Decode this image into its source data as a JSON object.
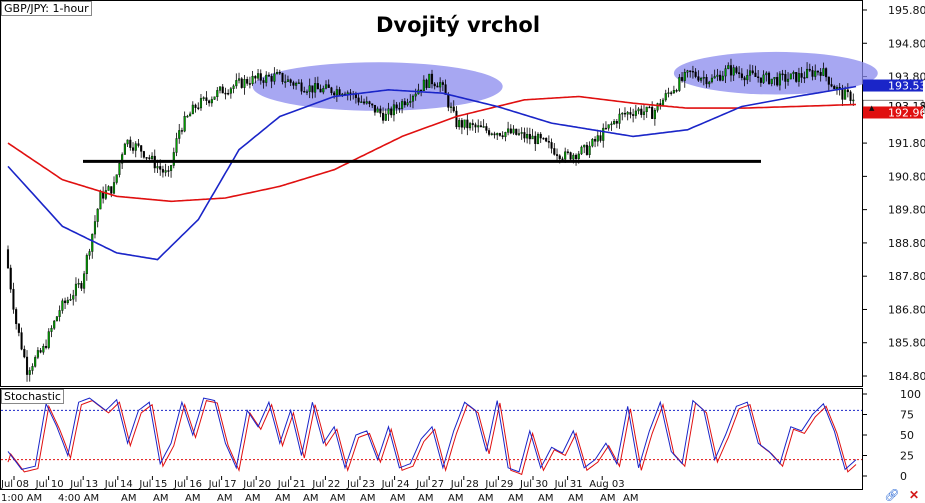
{
  "symbol_label": "GBP/JPY: 1-hour",
  "indicator_label": "Stochastic",
  "annotation_title": "Dvojitý vrchol",
  "colors": {
    "up": "#00a000",
    "down": "#000000",
    "ma_fast": "#1a25c8",
    "ma_slow": "#e01010",
    "ellipse": "#8a8aee",
    "stoch_k": "#1a25c8",
    "stoch_d": "#e01010",
    "level_high": "#1a25c8",
    "level_low": "#e01010",
    "price_badge_blue": "#1a25c8",
    "price_badge_red": "#e01010"
  },
  "chart_data": {
    "type": "candlestick",
    "title": "Dvojitý vrchol",
    "price_axis": {
      "ylim": [
        184.5,
        196.1
      ],
      "ticks": [
        "195.80",
        "194.80",
        "193.80",
        "192.80",
        "191.80",
        "190.80",
        "189.80",
        "188.80",
        "187.80",
        "186.80",
        "185.80",
        "184.80"
      ],
      "last_prices": [
        {
          "label": "193.53",
          "color": "blue"
        },
        {
          "label": "193.18",
          "color": "black"
        },
        {
          "label": "192.96",
          "color": "red"
        }
      ]
    },
    "x_axis": {
      "date_labels": [
        "Jul 08",
        "Jul 10",
        "Jul 13",
        "Jul 14",
        "Jul 15",
        "Jul 16",
        "Jul 17",
        "Jul 20",
        "Jul 21",
        "Jul 22",
        "Jul 23",
        "Jul 24",
        "Jul 27",
        "Jul 28",
        "Jul 29",
        "Jul 30",
        "Jul 31",
        "Aug 03"
      ],
      "time_labels": [
        "1:00 AM",
        "4:00 AM",
        "AM",
        "AM",
        "AM",
        "AM",
        "AM",
        "AM",
        "AM",
        "AM",
        "AM",
        "AM",
        "AM",
        "AM",
        "AM",
        "AM",
        "AM",
        "AM",
        "AM",
        "AM"
      ]
    },
    "price_path": [
      [
        0,
        188.6
      ],
      [
        4,
        186.4
      ],
      [
        8,
        185.0
      ],
      [
        14,
        185.6
      ],
      [
        20,
        186.8
      ],
      [
        28,
        187.6
      ],
      [
        35,
        190.2
      ],
      [
        40,
        190.5
      ],
      [
        44,
        191.9
      ],
      [
        50,
        191.6
      ],
      [
        56,
        191.1
      ],
      [
        60,
        190.8
      ],
      [
        64,
        192.2
      ],
      [
        70,
        192.9
      ],
      [
        80,
        193.4
      ],
      [
        90,
        193.7
      ],
      [
        100,
        193.8
      ],
      [
        106,
        193.6
      ],
      [
        115,
        193.4
      ],
      [
        125,
        193.4
      ],
      [
        132,
        193.0
      ],
      [
        140,
        192.6
      ],
      [
        150,
        193.3
      ],
      [
        156,
        193.7
      ],
      [
        160,
        193.6
      ],
      [
        166,
        192.4
      ],
      [
        176,
        192.2
      ],
      [
        186,
        192.1
      ],
      [
        196,
        191.9
      ],
      [
        206,
        191.4
      ],
      [
        214,
        191.6
      ],
      [
        220,
        192.1
      ],
      [
        226,
        192.6
      ],
      [
        232,
        192.8
      ],
      [
        238,
        192.7
      ],
      [
        245,
        193.4
      ],
      [
        252,
        193.9
      ],
      [
        260,
        193.7
      ],
      [
        266,
        194.0
      ],
      [
        275,
        193.8
      ],
      [
        284,
        193.7
      ],
      [
        292,
        193.8
      ],
      [
        300,
        194.0
      ],
      [
        305,
        193.5
      ],
      [
        308,
        193.25
      ],
      [
        312,
        193.18
      ]
    ],
    "candles_count": 312,
    "support_level": 191.25,
    "ma_fast": {
      "name": "",
      "points": [
        [
          0,
          191.1
        ],
        [
          20,
          189.3
        ],
        [
          40,
          188.5
        ],
        [
          55,
          188.3
        ],
        [
          70,
          189.5
        ],
        [
          85,
          191.6
        ],
        [
          100,
          192.6
        ],
        [
          120,
          193.2
        ],
        [
          140,
          193.4
        ],
        [
          160,
          193.3
        ],
        [
          180,
          192.9
        ],
        [
          200,
          192.4
        ],
        [
          230,
          192.0
        ],
        [
          250,
          192.2
        ],
        [
          270,
          192.9
        ],
        [
          290,
          193.2
        ],
        [
          312,
          193.5
        ]
      ]
    },
    "ma_slow": {
      "name": "",
      "points": [
        [
          0,
          191.8
        ],
        [
          20,
          190.7
        ],
        [
          40,
          190.2
        ],
        [
          60,
          190.05
        ],
        [
          80,
          190.15
        ],
        [
          100,
          190.5
        ],
        [
          120,
          191.0
        ],
        [
          145,
          192.0
        ],
        [
          165,
          192.6
        ],
        [
          190,
          193.1
        ],
        [
          210,
          193.2
        ],
        [
          230,
          193.0
        ],
        [
          250,
          192.85
        ],
        [
          270,
          192.85
        ],
        [
          290,
          192.9
        ],
        [
          312,
          192.96
        ]
      ]
    },
    "ellipses": [
      {
        "x_from": 90,
        "x_to": 182,
        "y_center": 193.5,
        "y_half": 0.73
      },
      {
        "x_from": 245,
        "x_to": 320,
        "y_center": 193.9,
        "y_half": 0.64
      }
    ],
    "stochastic": {
      "ylim": [
        0,
        100
      ],
      "ticks": [
        "100",
        "75",
        "50",
        "25",
        "0"
      ],
      "levels": [
        80,
        20
      ],
      "k_path": [
        [
          0,
          30
        ],
        [
          5,
          8
        ],
        [
          10,
          12
        ],
        [
          14,
          88
        ],
        [
          18,
          60
        ],
        [
          22,
          25
        ],
        [
          26,
          90
        ],
        [
          30,
          95
        ],
        [
          36,
          80
        ],
        [
          40,
          93
        ],
        [
          44,
          40
        ],
        [
          48,
          80
        ],
        [
          52,
          90
        ],
        [
          56,
          15
        ],
        [
          60,
          40
        ],
        [
          64,
          90
        ],
        [
          68,
          50
        ],
        [
          72,
          95
        ],
        [
          76,
          92
        ],
        [
          80,
          40
        ],
        [
          84,
          10
        ],
        [
          88,
          80
        ],
        [
          92,
          60
        ],
        [
          96,
          90
        ],
        [
          100,
          40
        ],
        [
          104,
          80
        ],
        [
          108,
          25
        ],
        [
          112,
          90
        ],
        [
          116,
          40
        ],
        [
          120,
          60
        ],
        [
          124,
          10
        ],
        [
          128,
          50
        ],
        [
          132,
          55
        ],
        [
          136,
          20
        ],
        [
          140,
          60
        ],
        [
          144,
          10
        ],
        [
          148,
          15
        ],
        [
          152,
          45
        ],
        [
          156,
          60
        ],
        [
          160,
          10
        ],
        [
          164,
          55
        ],
        [
          168,
          90
        ],
        [
          172,
          80
        ],
        [
          176,
          30
        ],
        [
          180,
          92
        ],
        [
          184,
          10
        ],
        [
          188,
          5
        ],
        [
          192,
          55
        ],
        [
          196,
          10
        ],
        [
          200,
          35
        ],
        [
          204,
          28
        ],
        [
          208,
          55
        ],
        [
          212,
          10
        ],
        [
          216,
          20
        ],
        [
          220,
          40
        ],
        [
          224,
          15
        ],
        [
          228,
          85
        ],
        [
          232,
          10
        ],
        [
          236,
          55
        ],
        [
          240,
          90
        ],
        [
          244,
          30
        ],
        [
          248,
          15
        ],
        [
          252,
          92
        ],
        [
          256,
          80
        ],
        [
          260,
          20
        ],
        [
          264,
          50
        ],
        [
          268,
          85
        ],
        [
          272,
          90
        ],
        [
          276,
          40
        ],
        [
          280,
          30
        ],
        [
          284,
          15
        ],
        [
          288,
          60
        ],
        [
          292,
          55
        ],
        [
          296,
          75
        ],
        [
          300,
          88
        ],
        [
          304,
          55
        ],
        [
          308,
          8
        ],
        [
          312,
          20
        ]
      ]
    }
  }
}
